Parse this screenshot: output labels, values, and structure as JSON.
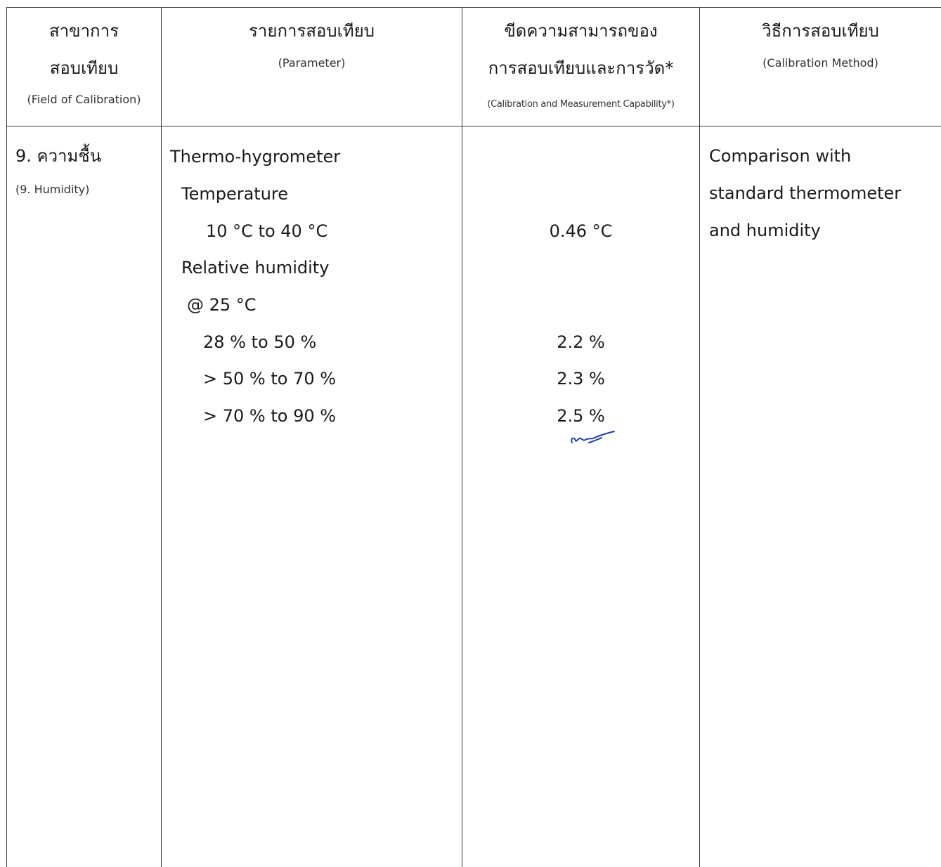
{
  "table": {
    "headers": [
      {
        "th_lines": [
          "สาขาการ",
          "สอบเทียบ"
        ],
        "en": "(Field of Calibration)"
      },
      {
        "th_lines": [
          "รายการสอบเทียบ"
        ],
        "en": "(Parameter)"
      },
      {
        "th_lines": [
          "ขีดความสามารถของ",
          "การสอบเทียบและการวัด*"
        ],
        "en": "(Calibration and Measurement Capability*)"
      },
      {
        "th_lines": [
          "วิธีการสอบเทียบ"
        ],
        "en": "(Calibration Method)"
      }
    ],
    "field": {
      "th": "9. ความชื้น",
      "en": "(9. Humidity)"
    },
    "parameters": [
      "Thermo-hygrometer",
      "Temperature",
      "10 °C to 40 °C",
      "Relative humidity",
      "@ 25 °C",
      "28 % to 50 %",
      "> 50 % to 70 %",
      "> 70 % to 90 %"
    ],
    "capability": [
      "0.46 °C",
      "2.2 %",
      "2.3 %",
      "2.5 %"
    ],
    "method": [
      "Comparison with",
      "standard thermometer",
      "and humidity"
    ]
  },
  "colors": {
    "line": "#3a3a3a",
    "text": "#1a1a1a",
    "signature": "#1f3fae"
  },
  "icons": {
    "signature": "handwritten-initials"
  }
}
